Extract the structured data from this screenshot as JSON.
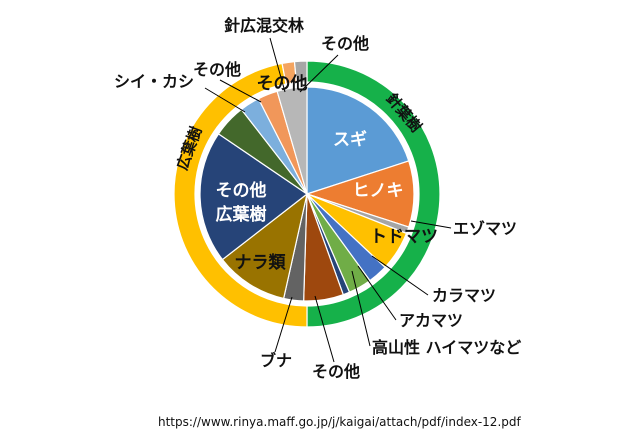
{
  "chart_data": {
    "type": "pie",
    "rings": [
      {
        "name": "",
        "categories": [
          "針葉樹",
          "広葉樹",
          "針広混交林",
          "その他"
        ],
        "values": [
          50.0,
          47.0,
          1.5,
          1.5
        ],
        "colors": [
          "#16b14a",
          "#ffc000",
          "#f4a460",
          "#a6a6a6"
        ]
      }
    ],
    "series": [
      {
        "name": "",
        "categories": [
          "スギ",
          "ヒノキ",
          "エゾマツ",
          "トドマツ",
          "カラマツ",
          "アカマツ",
          "高山性ハイマツなど",
          "その他",
          "ブナ",
          "ナラ類",
          "その他広葉樹",
          "シイ・カシ",
          "その他",
          "針広混交林",
          "その他"
        ],
        "values": [
          20.0,
          10.0,
          1.0,
          6.0,
          3.0,
          3.5,
          1.0,
          6.0,
          3.0,
          11.0,
          20.0,
          5.0,
          3.0,
          3.0,
          4.5
        ],
        "colors": [
          "#5b9bd5",
          "#ed7d31",
          "#a5a5a5",
          "#ffc000",
          "#4472c4",
          "#70ad47",
          "#264478",
          "#9e480e",
          "#636363",
          "#997300",
          "#264478",
          "#43682b",
          "#7cafdd",
          "#f1975a",
          "#b7b7b7"
        ]
      }
    ],
    "labels": {
      "sugi": "スギ",
      "hinoki": "ヒノキ",
      "ezomatsu": "エゾマツ",
      "todomatsu": "トドマツ",
      "karamatsu": "カラマツ",
      "akamatsu": "アカマツ",
      "haimatsu": "高山性 ハイマツなど",
      "sonota_conifer": "その他",
      "buna": "ブナ",
      "nara": "ナラ類",
      "other_broad_1": "その他",
      "other_broad_2": "広葉樹",
      "shii": "シイ・カシ",
      "sonota_small1": "その他",
      "sonota_top": "その他",
      "mixed": "針広混交林",
      "sonota_inner": "その他",
      "ring_conifer": "針葉樹",
      "ring_broadleaf": "広葉樹"
    },
    "source": "https://www.rinya.maff.go.jp/j/kaigai/attach/pdf/index-12.pdf"
  }
}
